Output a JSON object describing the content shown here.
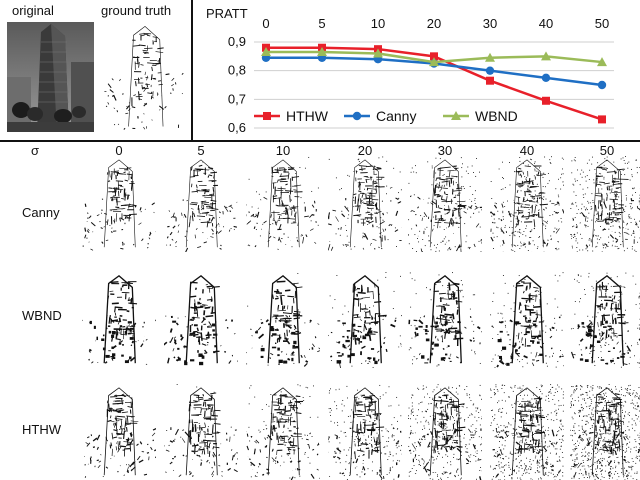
{
  "header": {
    "original_label": "original",
    "ground_truth_label": "ground truth"
  },
  "chart_data": {
    "type": "line",
    "ylabel": "PRATT",
    "xlabel": "",
    "x": [
      0,
      5,
      10,
      20,
      30,
      40,
      50
    ],
    "tick_labels": [
      "0",
      "5",
      "10",
      "20",
      "30",
      "40",
      "50"
    ],
    "ylim": [
      0.6,
      0.9
    ],
    "yticks": [
      "0,9",
      "0,8",
      "0,7",
      "0,6"
    ],
    "ytick_values": [
      0.9,
      0.8,
      0.7,
      0.6
    ],
    "grid": true,
    "legend_position": "bottom",
    "series": [
      {
        "name": "HTHW",
        "color": "#e8202a",
        "marker": "square",
        "values": [
          0.88,
          0.88,
          0.875,
          0.85,
          0.765,
          0.695,
          0.63
        ]
      },
      {
        "name": "Canny",
        "color": "#1f6fc4",
        "marker": "circle",
        "values": [
          0.845,
          0.845,
          0.84,
          0.825,
          0.8,
          0.775,
          0.75
        ]
      },
      {
        "name": "WBND",
        "color": "#9bbb59",
        "marker": "triangle",
        "values": [
          0.865,
          0.865,
          0.86,
          0.83,
          0.845,
          0.85,
          0.83
        ]
      }
    ]
  },
  "grid_panel": {
    "sigma_label": "σ",
    "columns": [
      "0",
      "5",
      "10",
      "20",
      "30",
      "40",
      "50"
    ],
    "rows": [
      "Canny",
      "WBND",
      "HTHW"
    ]
  }
}
